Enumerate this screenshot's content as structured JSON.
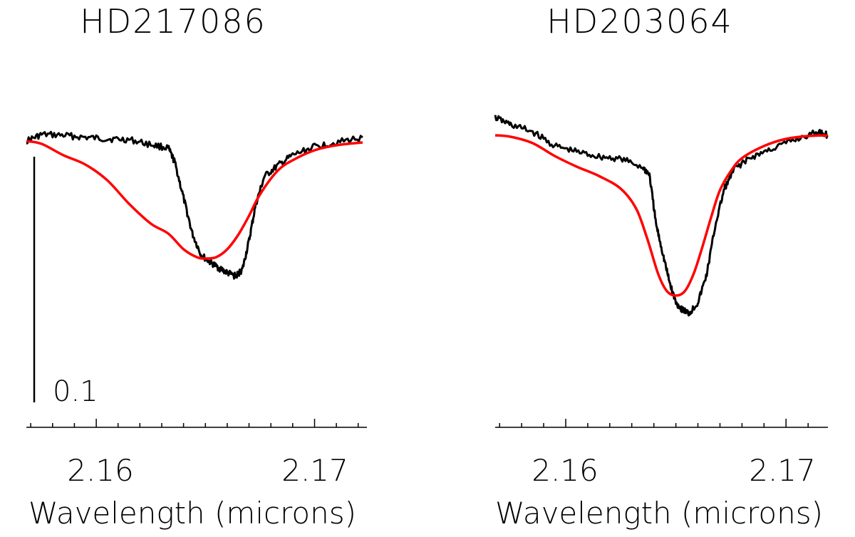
{
  "chart_data": [
    {
      "type": "line",
      "title": "HD217086",
      "xlabel": "Wavelength (microns)",
      "ylabel": "",
      "xlim": [
        2.1568,
        2.1724
      ],
      "x_ticks": [
        2.16,
        2.17
      ],
      "x_tick_labels": [
        "2.16",
        "2.17"
      ],
      "scale_bar": {
        "label": "0.1",
        "length": 0.1
      },
      "colors": {
        "observed": "#000000",
        "model": "#ff0000"
      },
      "series": [
        {
          "color": "#000000",
          "x": [
            2.1568,
            2.1575,
            2.1585,
            2.1595,
            2.1605,
            2.1615,
            2.1625,
            2.1633,
            2.1636,
            2.164,
            2.1644,
            2.1648,
            2.1652,
            2.1656,
            2.166,
            2.1664,
            2.1667,
            2.167,
            2.1673,
            2.1677,
            2.1683,
            2.169,
            2.17,
            2.171,
            2.1722
          ],
          "y": [
            0.99,
            0.999,
            0.998,
            0.995,
            0.993,
            0.992,
            0.985,
            0.98,
            0.96,
            0.91,
            0.86,
            0.83,
            0.82,
            0.812,
            0.805,
            0.8,
            0.81,
            0.85,
            0.9,
            0.94,
            0.955,
            0.97,
            0.982,
            0.988,
            0.995
          ]
        },
        {
          "color": "#ff0000",
          "x": [
            2.1568,
            2.1575,
            2.1585,
            2.1595,
            2.1605,
            2.1615,
            2.1625,
            2.1633,
            2.164,
            2.1646,
            2.165,
            2.1655,
            2.166,
            2.1665,
            2.167,
            2.1675,
            2.1683,
            2.169,
            2.17,
            2.171,
            2.1722
          ],
          "y": [
            0.99,
            0.986,
            0.97,
            0.957,
            0.935,
            0.902,
            0.874,
            0.86,
            0.838,
            0.827,
            0.825,
            0.827,
            0.838,
            0.858,
            0.885,
            0.915,
            0.948,
            0.963,
            0.977,
            0.984,
            0.988
          ]
        }
      ]
    },
    {
      "type": "line",
      "title": "HD203064",
      "xlabel": "Wavelength (microns)",
      "ylabel": "",
      "xlim": [
        2.1568,
        2.1719
      ],
      "x_ticks": [
        2.16,
        2.17
      ],
      "x_tick_labels": [
        "2.16",
        "2.17"
      ],
      "colors": {
        "observed": "#000000",
        "model": "#ff0000"
      },
      "series": [
        {
          "color": "#000000",
          "x": [
            2.1568,
            2.1575,
            2.1585,
            2.1595,
            2.1605,
            2.1615,
            2.1625,
            2.1635,
            2.1638,
            2.1641,
            2.1644,
            2.1647,
            2.165,
            2.1653,
            2.1656,
            2.166,
            2.1664,
            2.1668,
            2.1672,
            2.1677,
            2.1685,
            2.1695,
            2.1705,
            2.1715,
            2.1719
          ],
          "y": [
            1.02,
            1.01,
            1.0,
            0.98,
            0.972,
            0.965,
            0.962,
            0.95,
            0.94,
            0.87,
            0.83,
            0.79,
            0.76,
            0.75,
            0.745,
            0.76,
            0.8,
            0.87,
            0.92,
            0.95,
            0.965,
            0.978,
            0.99,
            1.0,
            0.995
          ]
        },
        {
          "color": "#ff0000",
          "x": [
            2.1568,
            2.1575,
            2.1585,
            2.1595,
            2.1605,
            2.1615,
            2.1625,
            2.1632,
            2.1637,
            2.1642,
            2.1646,
            2.165,
            2.1654,
            2.1658,
            2.1662,
            2.1666,
            2.167,
            2.1675,
            2.168,
            2.169,
            2.17,
            2.171,
            2.1719
          ],
          "y": [
            0.995,
            0.993,
            0.984,
            0.966,
            0.951,
            0.938,
            0.92,
            0.892,
            0.85,
            0.8,
            0.776,
            0.77,
            0.776,
            0.8,
            0.838,
            0.88,
            0.918,
            0.945,
            0.963,
            0.98,
            0.99,
            0.994,
            0.995
          ]
        }
      ]
    }
  ]
}
